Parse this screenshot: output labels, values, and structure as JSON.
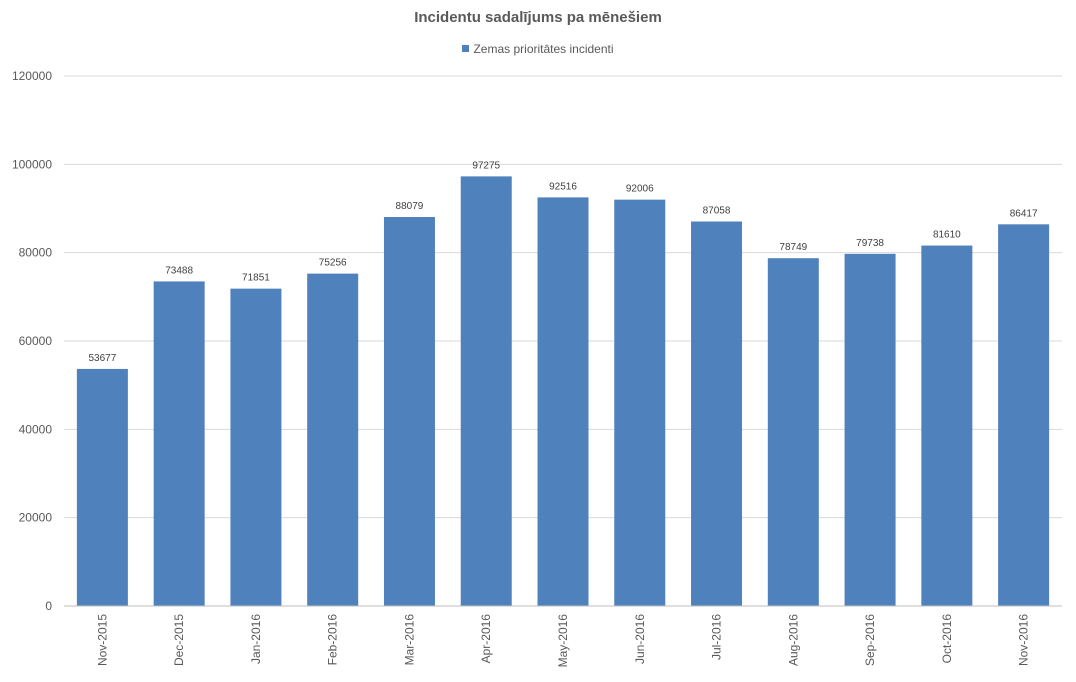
{
  "chart_data": {
    "type": "bar",
    "title": "Incidentu sadalījums pa mēnešiem",
    "xlabel": "",
    "ylabel": "",
    "categories": [
      "Nov-2015",
      "Dec-2015",
      "Jan-2016",
      "Feb-2016",
      "Mar-2016",
      "Apr-2016",
      "May-2016",
      "Jun-2016",
      "Jul-2016",
      "Aug-2016",
      "Sep-2016",
      "Oct-2016",
      "Nov-2016"
    ],
    "series": [
      {
        "name": "Zemas prioritātes incidenti",
        "values": [
          53677,
          73488,
          71851,
          75256,
          88079,
          97275,
          92516,
          92006,
          87058,
          78749,
          79738,
          81610,
          86417
        ]
      }
    ],
    "ylim": [
      0,
      120000
    ],
    "yticks": [
      "0",
      "20000",
      "40000",
      "60000",
      "80000",
      "100000",
      "120000"
    ],
    "grid": true,
    "legend_position": "top",
    "bar_color": "#4F81BD"
  }
}
